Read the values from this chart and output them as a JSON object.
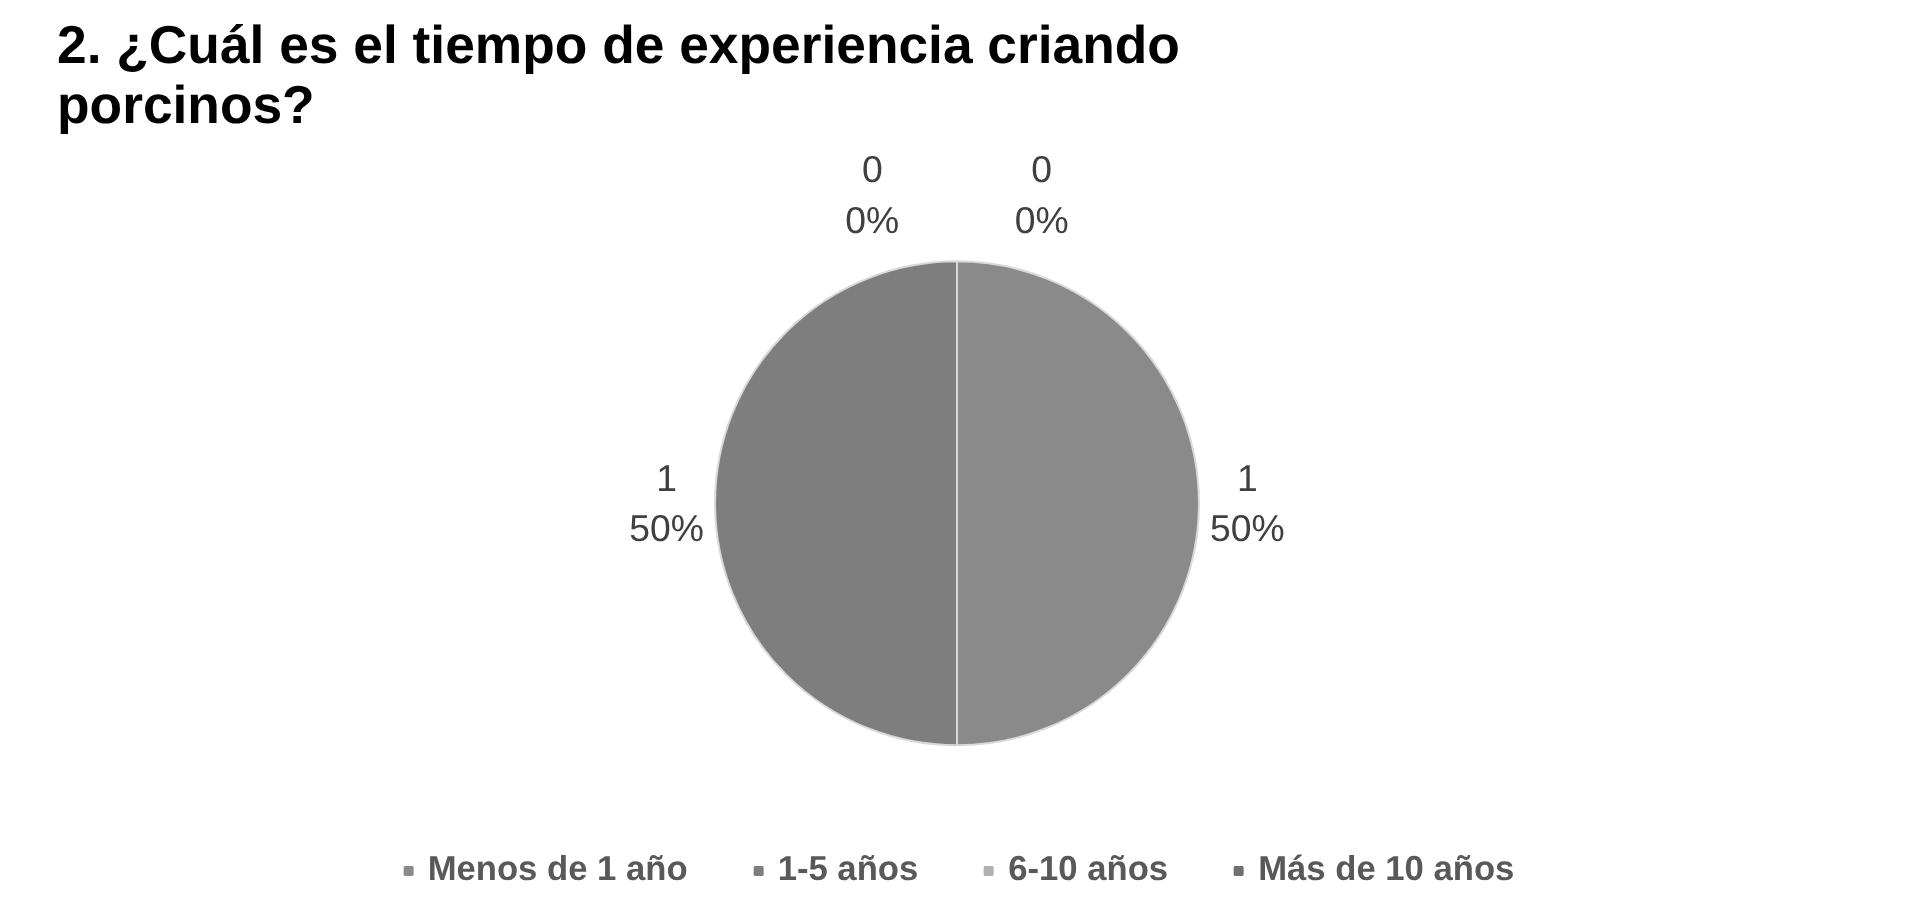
{
  "chart_data": {
    "type": "pie",
    "title": "2. ¿Cuál es el tiempo de experiencia criando porcinos?",
    "categories": [
      "Menos de 1 año",
      "1-5 años",
      "6-10 años",
      "Más de 10 años"
    ],
    "values": [
      1,
      1,
      0,
      0
    ],
    "colors": [
      "#8a8a8a",
      "#7e7e7e",
      "#b0b0b0",
      "#707070"
    ],
    "value_labels": [
      "1\n50%",
      "1\n50%",
      "0\n0%",
      "0\n0%"
    ],
    "legend": "bottom"
  }
}
